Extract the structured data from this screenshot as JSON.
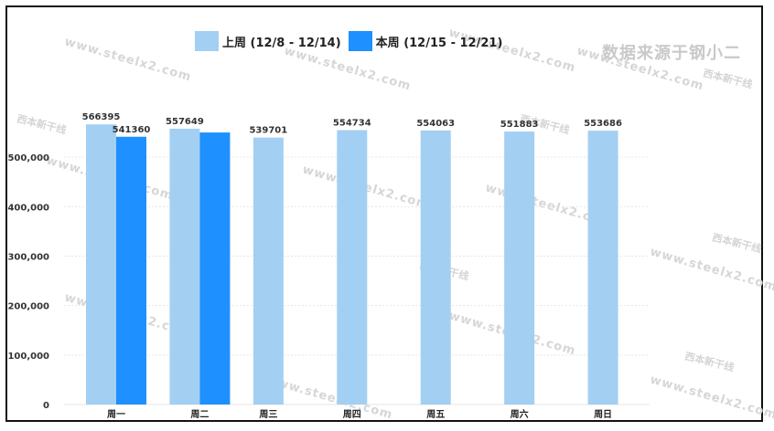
{
  "chart_data": {
    "type": "bar",
    "categories": [
      "周一",
      "周二",
      "周三",
      "周四",
      "周五",
      "周六",
      "周日"
    ],
    "series": [
      {
        "name": "上周 (12/8 - 12/14)",
        "color": "#a3cff2",
        "values": [
          566395,
          557649,
          539701,
          554734,
          554063,
          551883,
          553686
        ]
      },
      {
        "name": "本周 (12/15 - 12/21)",
        "color": "#1e90ff",
        "values": [
          541360,
          550000,
          null,
          null,
          null,
          null,
          null
        ]
      }
    ],
    "yticks": [
      "0",
      "100,000",
      "200,000",
      "300,000",
      "400,000",
      "500,000"
    ],
    "ylim": [
      0,
      600000
    ],
    "legend_position": "top",
    "grid": true
  },
  "source_note": "数据来源于钢小二",
  "watermark_text": "www.steelx2.com",
  "watermark_logo": "西本新干线"
}
